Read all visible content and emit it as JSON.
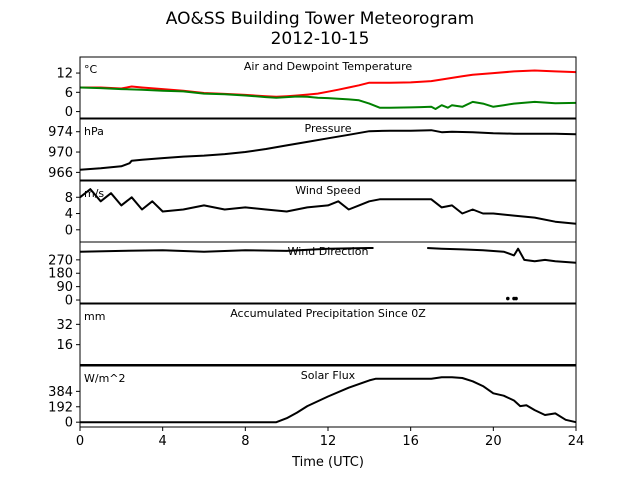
{
  "title": "AO&SS Building Tower Meteorogram",
  "subtitle": "2012-10-15",
  "xlabel": "Time (UTC)",
  "chart_data": {
    "type": "line",
    "x_ticks": [
      0,
      4,
      8,
      12,
      16,
      20,
      24
    ],
    "xlim": [
      0,
      24
    ],
    "panels": [
      {
        "title": "Air and Dewpoint Temperature",
        "unit": "°C",
        "ylim": [
          -2,
          17
        ],
        "y_ticks": [
          0,
          6,
          12
        ],
        "series": [
          {
            "color": "#ff0000",
            "x": [
              0,
              1,
              2,
              2.5,
              3,
              4,
              5,
              6,
              7,
              8,
              9,
              9.5,
              10,
              10.5,
              11,
              11.5,
              12,
              12.5,
              13,
              13.5,
              14,
              14.5,
              15,
              16,
              16.5,
              17,
              17.5,
              18,
              18.5,
              19,
              20,
              21,
              22,
              23,
              24
            ],
            "y": [
              7.5,
              7.5,
              7.2,
              7.8,
              7.5,
              7,
              6.5,
              5.8,
              5.5,
              5.2,
              4.8,
              4.6,
              4.8,
              5,
              5.3,
              5.6,
              6.2,
              6.8,
              7.5,
              8.2,
              9,
              9,
              9,
              9.1,
              9.3,
              9.5,
              10,
              10.5,
              11,
              11.5,
              12,
              12.5,
              12.8,
              12.5,
              12.3
            ]
          },
          {
            "color": "#008000",
            "x": [
              0,
              1,
              2,
              3,
              4,
              5,
              6,
              7,
              8,
              9,
              9.5,
              10,
              10.5,
              11,
              11.5,
              12,
              12.5,
              13,
              13.5,
              14,
              14.5,
              15,
              16,
              16.5,
              17,
              17.2,
              17.5,
              17.8,
              18,
              18.5,
              19,
              19.5,
              20,
              20.5,
              21,
              22,
              23,
              24
            ],
            "y": [
              7.5,
              7.3,
              7,
              6.8,
              6.5,
              6.3,
              5.6,
              5.4,
              5,
              4.5,
              4.3,
              4.5,
              4.7,
              4.6,
              4.3,
              4.2,
              4,
              3.8,
              3.5,
              2.5,
              1.2,
              1.2,
              1.3,
              1.4,
              1.5,
              0.8,
              2,
              1.2,
              2,
              1.5,
              3,
              2.5,
              1.5,
              2,
              2.5,
              3,
              2.6,
              2.7
            ]
          }
        ]
      },
      {
        "title": "Pressure",
        "unit": "hPa",
        "ylim": [
          964.5,
          976.5
        ],
        "y_ticks": [
          966,
          970,
          974
        ],
        "series": [
          {
            "color": "#000000",
            "x": [
              0,
              1,
              2,
              2.4,
              2.5,
              3,
              4,
              5,
              6,
              7,
              8,
              9,
              10,
              11,
              12,
              13,
              14,
              15,
              16,
              17,
              17.5,
              18,
              19,
              20,
              21,
              22,
              23,
              24
            ],
            "y": [
              966.5,
              966.8,
              967.2,
              967.8,
              968.3,
              968.5,
              968.8,
              969.1,
              969.3,
              969.6,
              970,
              970.6,
              971.3,
              972,
              972.7,
              973.4,
              974.1,
              974.2,
              974.2,
              974.3,
              973.9,
              974,
              973.9,
              973.7,
              973.6,
              973.6,
              973.6,
              973.5
            ]
          }
        ]
      },
      {
        "title": "Wind Speed",
        "unit": "m/s",
        "ylim": [
          -3,
          12
        ],
        "y_ticks": [
          0,
          4,
          8
        ],
        "series": [
          {
            "color": "#000000",
            "x": [
              0,
              0.5,
              1,
              1.5,
              2,
              2.5,
              3,
              3.5,
              4,
              5,
              6,
              7,
              8,
              9,
              10,
              11,
              12,
              12.5,
              13,
              13.5,
              14,
              14.5,
              15,
              16,
              16.5,
              17,
              17.5,
              18,
              18.5,
              19,
              19.5,
              20,
              21,
              22,
              23,
              24
            ],
            "y": [
              8,
              10,
              7,
              9,
              6,
              8,
              5,
              7,
              4.5,
              5,
              6,
              5,
              5.5,
              5,
              4.5,
              5.5,
              6,
              7,
              5,
              6,
              7,
              7.5,
              7.5,
              7.5,
              7.5,
              7.5,
              5.5,
              6,
              4,
              5,
              4,
              4,
              3.5,
              3,
              2,
              1.5
            ]
          }
        ]
      },
      {
        "title": "Wind Direction",
        "unit": "",
        "ylim": [
          -20,
          390
        ],
        "y_ticks": [
          0,
          90,
          180,
          270
        ],
        "series": [
          {
            "color": "#000000",
            "x": [
              0,
              2,
              4,
              6,
              8,
              10,
              12,
              14,
              14.2
            ],
            "y": [
              325,
              330,
              335,
              325,
              335,
              330,
              345,
              350,
              350
            ]
          },
          {
            "color": "#000000",
            "x": [
              16.8,
              17.5,
              18.5,
              19.5,
              20.5,
              21,
              21.2,
              21.5,
              22,
              22.5,
              23,
              24
            ],
            "y": [
              350,
              345,
              340,
              335,
              325,
              300,
              345,
              270,
              260,
              270,
              260,
              250
            ]
          }
        ],
        "points": [
          {
            "x": 20.7,
            "y": 10
          },
          {
            "x": 21.0,
            "y": 10
          },
          {
            "x": 21.1,
            "y": 10
          }
        ]
      },
      {
        "title": "Accumulated Precipitation Since 0Z",
        "unit": "mm",
        "ylim": [
          0,
          48
        ],
        "y_ticks": [
          16,
          32
        ],
        "series": [
          {
            "color": "#000000",
            "x": [
              0,
              24
            ],
            "y": [
              0,
              0
            ]
          }
        ]
      },
      {
        "title": "Solar Flux",
        "unit": "W/m^2",
        "ylim": [
          -60,
          700
        ],
        "y_ticks": [
          0,
          192,
          384
        ],
        "series": [
          {
            "color": "#000000",
            "x": [
              0,
              9.5,
              10,
              10.5,
              11,
              12,
              13,
              14,
              14.3,
              16,
              17,
              17.5,
              18,
              18.5,
              19,
              19.5,
              20,
              20.5,
              21,
              21.3,
              21.6,
              22,
              22.5,
              23,
              23.5,
              24
            ],
            "y": [
              0,
              0,
              50,
              120,
              200,
              320,
              430,
              520,
              540,
              540,
              540,
              560,
              560,
              550,
              510,
              450,
              360,
              330,
              270,
              200,
              210,
              150,
              90,
              110,
              30,
              0
            ]
          }
        ]
      }
    ]
  }
}
